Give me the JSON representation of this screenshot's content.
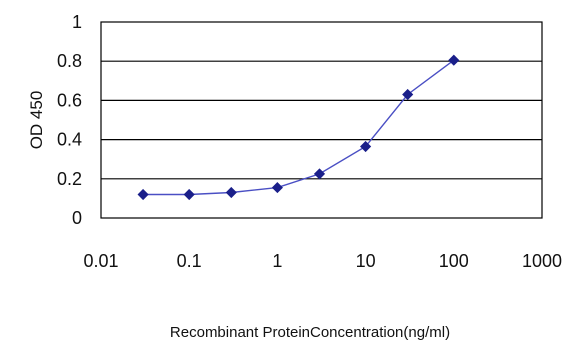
{
  "chart_data": {
    "type": "line",
    "title": "",
    "xlabel": "Recombinant ProteinConcentration(ng/ml)",
    "ylabel": "OD 450",
    "xscale": "log",
    "xlim": [
      0.01,
      1000
    ],
    "ylim": [
      0,
      1
    ],
    "x_ticks": [
      0.01,
      0.1,
      1,
      10,
      100,
      1000
    ],
    "x_tick_labels": [
      "0.01",
      "0.1",
      "1",
      "10",
      "100",
      "1000"
    ],
    "y_ticks": [
      0,
      0.2,
      0.4,
      0.6,
      0.8,
      1
    ],
    "y_tick_labels": [
      "0",
      "0.2",
      "0.4",
      "0.6",
      "0.8",
      "1"
    ],
    "grid": "horizontal",
    "legend": "none",
    "series": [
      {
        "x": [
          0.03,
          0.1,
          0.3,
          1,
          3,
          10,
          30,
          100
        ],
        "y": [
          0.12,
          0.12,
          0.13,
          0.155,
          0.225,
          0.365,
          0.63,
          0.805
        ]
      }
    ],
    "colors": {
      "line": "#4a4fc4",
      "marker": "#1a1f8a",
      "grid": "#000000",
      "plot_background": "#ffffff"
    },
    "marker": "diamond"
  }
}
